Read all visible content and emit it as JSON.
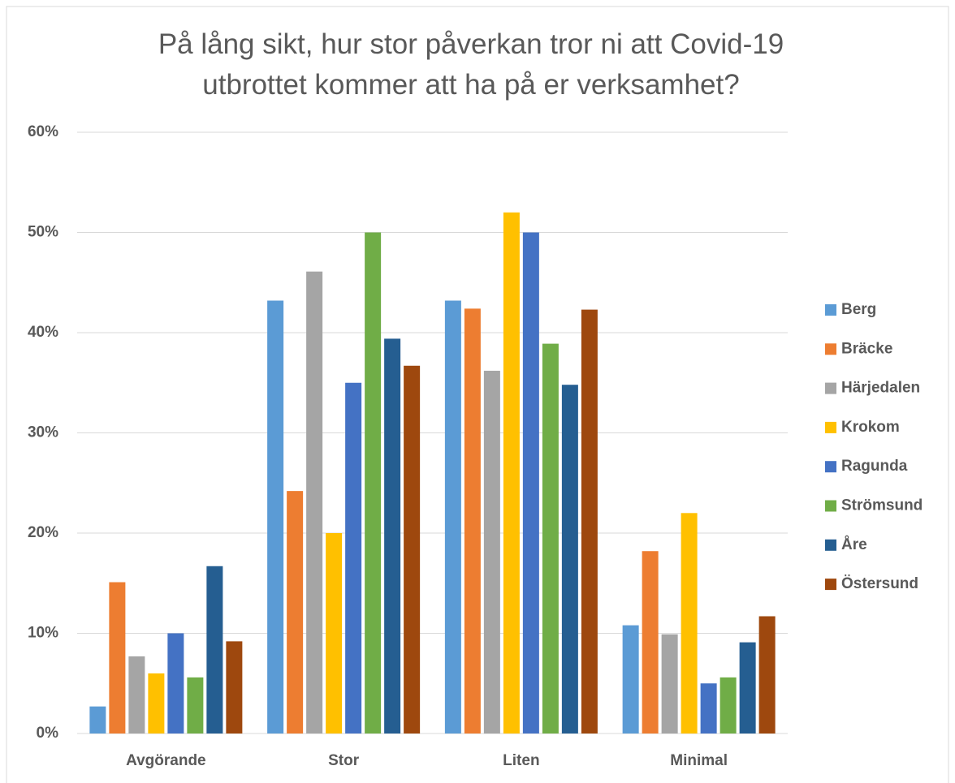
{
  "chart_data": {
    "type": "bar",
    "title": "På lång sikt, hur stor påverkan tror ni att Covid-19 utbrottet kommer att ha på er verksamhet?",
    "categories": [
      "Avgörande",
      "Stor",
      "Liten",
      "Minimal"
    ],
    "series": [
      {
        "name": "Berg",
        "color": "#5b9bd5",
        "values": [
          2.7,
          43.2,
          43.2,
          10.8
        ]
      },
      {
        "name": "Bräcke",
        "color": "#ed7d31",
        "values": [
          15.1,
          24.2,
          42.4,
          18.2
        ]
      },
      {
        "name": "Härjedalen",
        "color": "#a5a5a5",
        "values": [
          7.7,
          46.1,
          36.2,
          9.9
        ]
      },
      {
        "name": "Krokom",
        "color": "#ffc000",
        "values": [
          6.0,
          20.0,
          52.0,
          22.0
        ]
      },
      {
        "name": "Ragunda",
        "color": "#4472c4",
        "values": [
          10.0,
          35.0,
          50.0,
          5.0
        ]
      },
      {
        "name": "Strömsund",
        "color": "#70ad47",
        "values": [
          5.6,
          50.0,
          38.9,
          5.6
        ]
      },
      {
        "name": "Åre",
        "color": "#255e91",
        "values": [
          16.7,
          39.4,
          34.8,
          9.1
        ]
      },
      {
        "name": "Östersund",
        "color": "#9e480e",
        "values": [
          9.2,
          36.7,
          42.3,
          11.7
        ]
      }
    ],
    "ylim": [
      0,
      60
    ],
    "yticks": [
      {
        "value": 0,
        "label": "0%"
      },
      {
        "value": 10,
        "label": "10%"
      },
      {
        "value": 20,
        "label": "20%"
      },
      {
        "value": 30,
        "label": "30%"
      },
      {
        "value": 40,
        "label": "40%"
      },
      {
        "value": 50,
        "label": "50%"
      },
      {
        "value": 60,
        "label": "60%"
      }
    ],
    "grid": true,
    "legend": "right"
  }
}
